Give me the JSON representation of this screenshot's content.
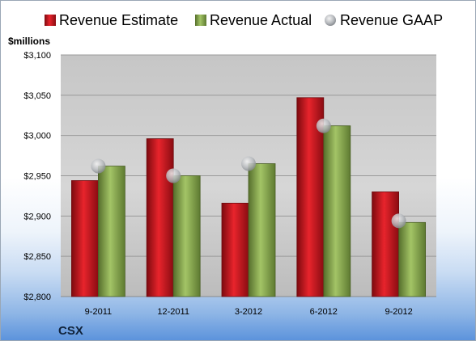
{
  "chart_data": {
    "type": "bar",
    "unit_label": "$millions",
    "company": "CSX",
    "categories": [
      "9-2011",
      "12-2011",
      "3-2012",
      "6-2012",
      "9-2012"
    ],
    "y_ticks": [
      "$2,800",
      "$2,850",
      "$2,900",
      "$2,950",
      "$3,000",
      "$3,050",
      "$3,100"
    ],
    "ylim": [
      2800,
      3100
    ],
    "grid": true,
    "legend_position": "top",
    "series": [
      {
        "name": "Revenue Estimate",
        "kind": "bar",
        "color": "#c4141c",
        "values": [
          2944,
          2996,
          2916,
          3047,
          2930
        ]
      },
      {
        "name": "Revenue Actual",
        "kind": "bar",
        "color": "#7ea446",
        "values": [
          2962,
          2950,
          2965,
          3012,
          2892
        ]
      },
      {
        "name": "Revenue GAAP",
        "kind": "marker",
        "color": "#b8bcc2",
        "values": [
          2962,
          2950,
          2965,
          3012,
          2894
        ]
      }
    ]
  }
}
